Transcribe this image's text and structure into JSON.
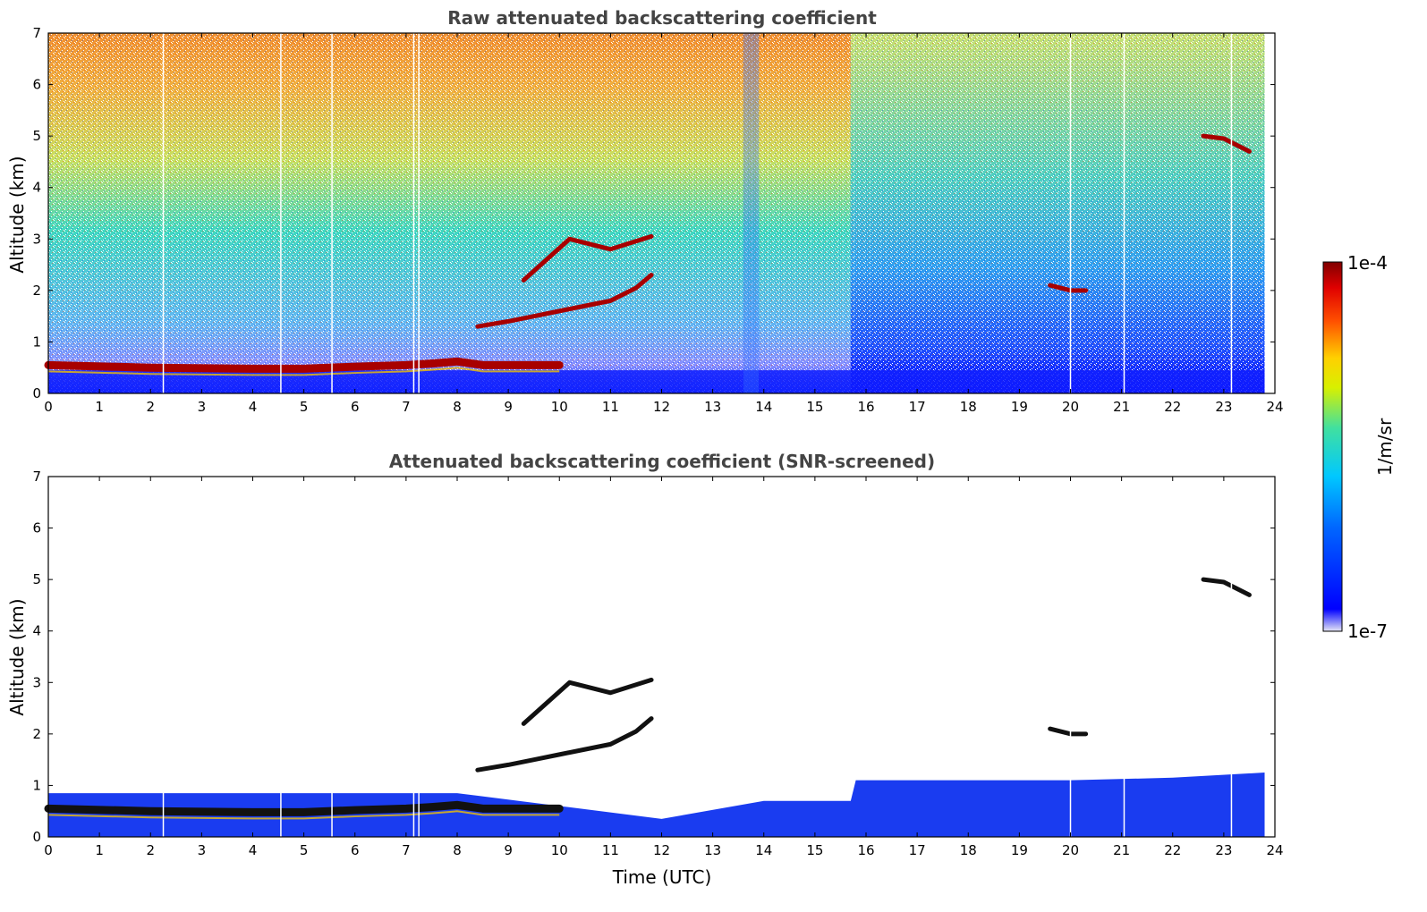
{
  "chart_data": [
    {
      "type": "heatmap",
      "title": "Raw attenuated backscattering coefficient",
      "xlabel": "",
      "ylabel": "Altitude (km)",
      "xlim": [
        0,
        24
      ],
      "ylim": [
        0,
        7
      ],
      "xticks": [
        0,
        1,
        2,
        3,
        4,
        5,
        6,
        7,
        8,
        9,
        10,
        11,
        12,
        13,
        14,
        15,
        16,
        17,
        18,
        19,
        20,
        21,
        22,
        23,
        24
      ],
      "yticks": [
        0,
        1,
        2,
        3,
        4,
        5,
        6,
        7
      ],
      "gap_times": [
        2.25,
        4.55,
        5.55,
        7.15,
        7.25,
        20.0,
        21.05,
        23.15
      ],
      "layers": [
        {
          "name": "boundary-layer",
          "t": [
            0,
            2,
            4,
            5,
            6,
            7,
            7.5,
            8,
            8.5,
            9,
            9.5,
            10
          ],
          "alt": [
            0.55,
            0.5,
            0.48,
            0.48,
            0.52,
            0.55,
            0.58,
            0.62,
            0.55,
            0.55,
            0.55,
            0.55
          ],
          "level": 1.0
        },
        {
          "name": "cloud-lower",
          "t": [
            8.4,
            9,
            9.5,
            10,
            10.5,
            11,
            11.5,
            11.8
          ],
          "alt": [
            1.3,
            1.4,
            1.5,
            1.6,
            1.7,
            1.8,
            2.05,
            2.3
          ],
          "level": 0.95
        },
        {
          "name": "cloud-upper",
          "t": [
            9.3,
            10.2,
            11.0,
            11.8
          ],
          "alt": [
            2.2,
            3.0,
            2.8,
            3.05
          ],
          "level": 0.95
        },
        {
          "name": "cloud-high",
          "t": [
            22.6,
            23.0,
            23.5
          ],
          "alt": [
            5.0,
            4.95,
            4.7
          ],
          "level": 0.97
        },
        {
          "name": "cloud-mid",
          "t": [
            19.6,
            20.0,
            20.3
          ],
          "alt": [
            2.1,
            2.0,
            2.0
          ],
          "level": 0.9
        }
      ]
    },
    {
      "type": "heatmap",
      "title": "Attenuated backscattering coefficient (SNR-screened)",
      "xlabel": "Time (UTC)",
      "ylabel": "Altitude (km)",
      "xlim": [
        0,
        24
      ],
      "ylim": [
        0,
        7
      ],
      "xticks": [
        0,
        1,
        2,
        3,
        4,
        5,
        6,
        7,
        8,
        9,
        10,
        11,
        12,
        13,
        14,
        15,
        16,
        17,
        18,
        19,
        20,
        21,
        22,
        23,
        24
      ],
      "yticks": [
        0,
        1,
        2,
        3,
        4,
        5,
        6,
        7
      ],
      "valid_top_km": [
        [
          0,
          0.85
        ],
        [
          8,
          0.85
        ],
        [
          10,
          0.6
        ],
        [
          12,
          0.35
        ],
        [
          14,
          0.7
        ],
        [
          15.7,
          0.7
        ],
        [
          15.8,
          1.1
        ],
        [
          20,
          1.1
        ],
        [
          22,
          1.15
        ],
        [
          23.8,
          1.25
        ]
      ]
    }
  ],
  "colorbar": {
    "label": "1/m/sr",
    "max_label": "1e-4",
    "min_label": "1e-7",
    "colormap": "jet",
    "colors": [
      "#e6e6f5",
      "#0000ff",
      "#00a0ff",
      "#00e0c0",
      "#ffff00",
      "#ff8000",
      "#ff0000",
      "#800000"
    ]
  }
}
